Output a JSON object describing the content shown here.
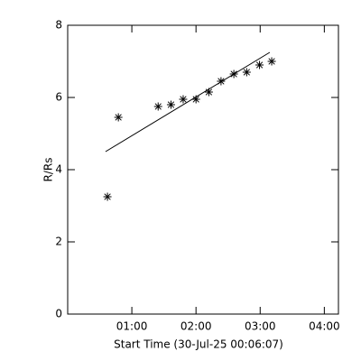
{
  "chart_data": {
    "type": "scatter",
    "x_label": "Start Time (30-Jul-25 00:06:07)",
    "y_label": "R/Rs",
    "xlim": [
      0,
      4.22
    ],
    "ylim": [
      0,
      8
    ],
    "xticks": [
      {
        "value": 1,
        "label": "01:00"
      },
      {
        "value": 2,
        "label": "02:00"
      },
      {
        "value": 3,
        "label": "03:00"
      },
      {
        "value": 4,
        "label": "04:00"
      }
    ],
    "yticks": [
      0,
      2,
      4,
      6,
      8
    ],
    "color": "#000000",
    "points": {
      "x": [
        0.62,
        0.79,
        1.41,
        1.61,
        1.8,
        2.0,
        2.2,
        2.39,
        2.59,
        2.79,
        2.99,
        3.18
      ],
      "y": [
        3.25,
        5.45,
        5.75,
        5.8,
        5.95,
        5.95,
        6.15,
        6.45,
        6.65,
        6.7,
        6.9,
        7.0
      ]
    },
    "fit": {
      "x": [
        0.59,
        3.15
      ],
      "y": [
        4.5,
        7.25
      ]
    }
  }
}
